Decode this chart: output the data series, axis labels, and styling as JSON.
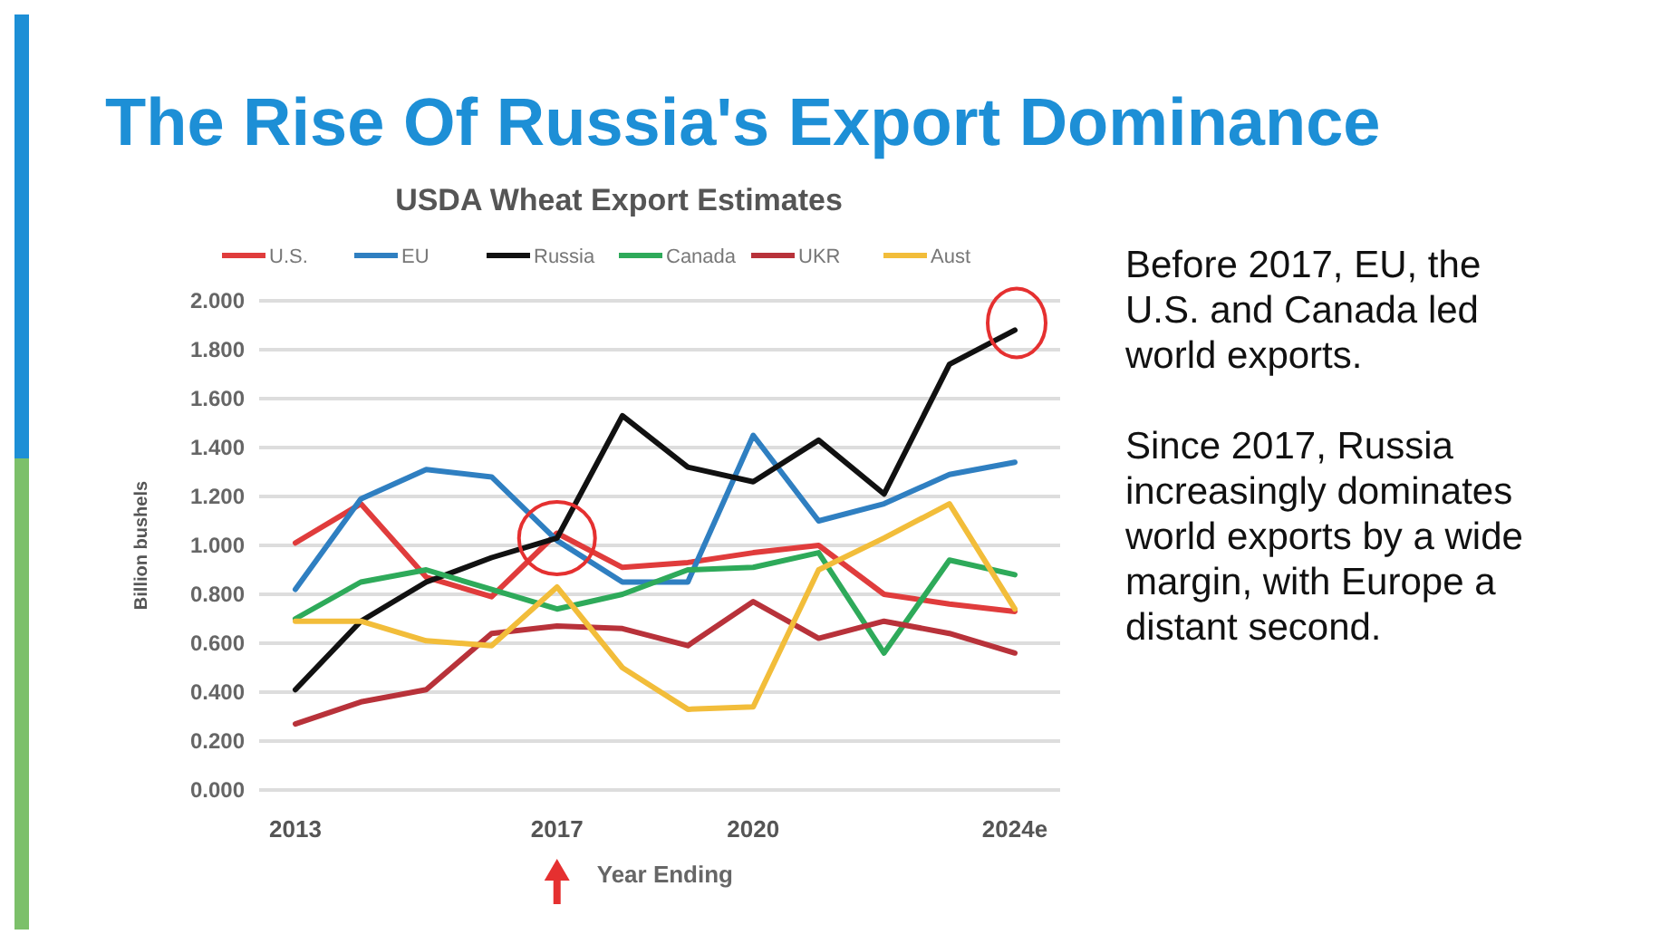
{
  "chart_data": {
    "type": "line",
    "title": "The Rise Of Russia's Export Dominance",
    "subtitle": "USDA Wheat Export Estimates",
    "xlabel": "Year Ending",
    "ylabel": "Billion bushels",
    "categories": [
      "2013",
      null,
      null,
      null,
      "2017",
      null,
      null,
      "2020",
      null,
      null,
      null,
      "2024e"
    ],
    "series": [
      {
        "name": "U.S.",
        "color": "#e03c3c",
        "values": [
          1.01,
          1.17,
          0.87,
          0.79,
          1.05,
          0.91,
          0.93,
          0.97,
          1.0,
          0.8,
          0.76,
          0.73
        ]
      },
      {
        "name": "EU",
        "color": "#2f7fc1",
        "values": [
          0.82,
          1.19,
          1.31,
          1.28,
          1.02,
          0.85,
          0.85,
          1.45,
          1.1,
          1.17,
          1.29,
          1.34
        ]
      },
      {
        "name": "Russia",
        "color": "#111111",
        "values": [
          0.41,
          0.69,
          0.85,
          0.95,
          1.03,
          1.53,
          1.32,
          1.26,
          1.43,
          1.21,
          1.74,
          1.88
        ]
      },
      {
        "name": "Canada",
        "color": "#2eaa5a",
        "values": [
          0.7,
          0.85,
          0.9,
          0.82,
          0.74,
          0.8,
          0.9,
          0.91,
          0.97,
          0.56,
          0.94,
          0.88
        ]
      },
      {
        "name": "UKR",
        "color": "#b8323a",
        "values": [
          0.27,
          0.36,
          0.41,
          0.64,
          0.67,
          0.66,
          0.59,
          0.77,
          0.62,
          0.69,
          0.64,
          0.56
        ]
      },
      {
        "name": "Aust",
        "color": "#f2bd3a",
        "values": [
          0.69,
          0.69,
          0.61,
          0.59,
          0.83,
          0.5,
          0.33,
          0.34,
          0.9,
          1.03,
          1.17,
          0.74
        ]
      }
    ],
    "ylim": [
      0,
      2
    ],
    "yticks": [
      {
        "value": 0,
        "label": "0.000"
      },
      {
        "value": 0.2,
        "label": "0.200"
      },
      {
        "value": 0.4,
        "label": "0.400"
      },
      {
        "value": 0.6,
        "label": "0.600"
      },
      {
        "value": 0.8,
        "label": "0.800"
      },
      {
        "value": 1,
        "label": "1.000"
      },
      {
        "value": 1.2,
        "label": "1.200"
      },
      {
        "value": 1.4,
        "label": "1.400"
      },
      {
        "value": 1.6,
        "label": "1.600"
      },
      {
        "value": 1.8,
        "label": "1.800"
      },
      {
        "value": 2,
        "label": "2.000"
      }
    ],
    "grid": "y",
    "legend": "top",
    "marker": "none",
    "line_style": "solid",
    "annotations": [
      "Before 2017, EU, the U.S. and Canada led world exports.",
      "Since 2017, Russia increasingly dominates world exports by a wide margin, with Europe a distant second."
    ]
  }
}
